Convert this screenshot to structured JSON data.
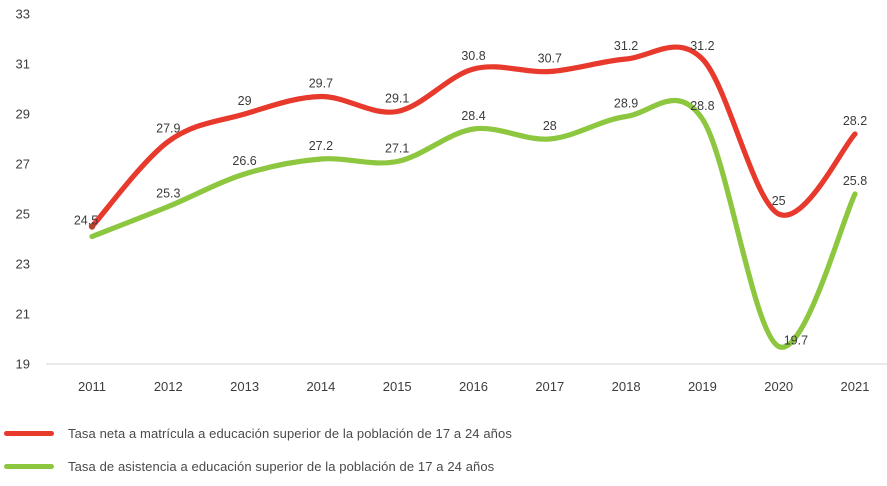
{
  "chart_data": {
    "type": "line",
    "x": [
      "2011",
      "2012",
      "2013",
      "2014",
      "2015",
      "2016",
      "2017",
      "2018",
      "2019",
      "2020",
      "2021"
    ],
    "ylim": [
      19,
      33
    ],
    "yticks": [
      "19",
      "21",
      "23",
      "25",
      "27",
      "29",
      "31",
      "33"
    ],
    "grid": false,
    "legend_position": "bottom-left",
    "axis_color": "#d6d6d6",
    "text_color": "#3d3d3d",
    "label_color": "#3b3b3b",
    "start_dot_color": "#b5442d",
    "series": [
      {
        "name": "Tasa neta a matrícula a educación superior de la población de 17 a 24 años",
        "color": "#e8392d",
        "values": [
          24.5,
          27.9,
          29,
          29.7,
          29.1,
          30.8,
          30.7,
          31.2,
          31.2,
          25,
          28.2
        ],
        "labels": [
          "24.5",
          "27.9",
          "29",
          "29.7",
          "29.1",
          "30.8",
          "30.7",
          "31.2",
          "31.2",
          "25",
          "28.2"
        ]
      },
      {
        "name": "Tasa de asistencia a educación superior de la población de 17 a 24 años",
        "color": "#8dc63f",
        "values": [
          24.1,
          25.3,
          26.6,
          27.2,
          27.1,
          28.4,
          28,
          28.9,
          28.8,
          19.7,
          25.8
        ],
        "labels": [
          "",
          "25.3",
          "26.6",
          "27.2",
          "27.1",
          "28.4",
          "28",
          "28.9",
          "28.8",
          "19.7",
          "25.8"
        ]
      }
    ],
    "label_overrides": {
      "0.0": {
        "dx": -6,
        "dy": 7,
        "anchor": "middle"
      },
      "1.9": {
        "dx": 5,
        "dy": 7,
        "anchor": "start"
      }
    }
  }
}
